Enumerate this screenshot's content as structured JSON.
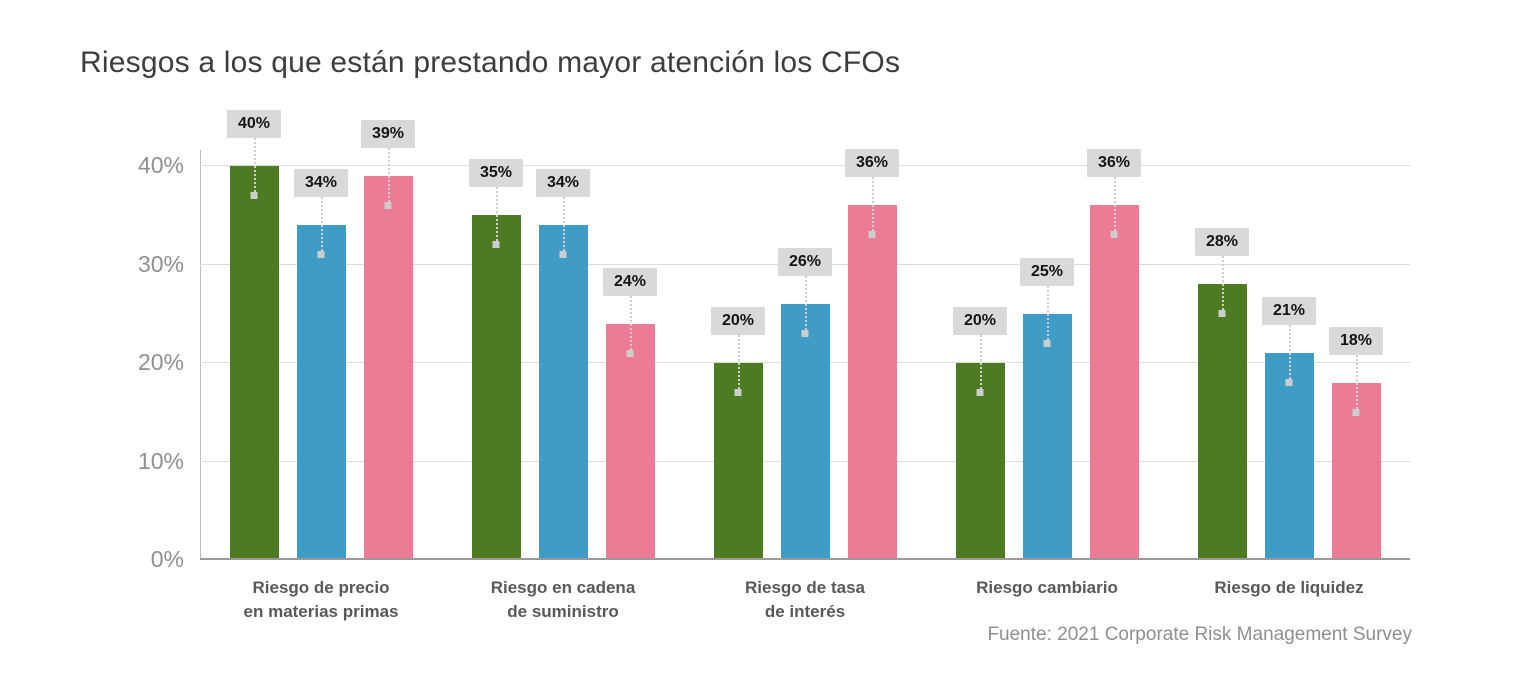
{
  "title": "Riesgos a los que están prestando mayor atención los CFOs",
  "source": "Fuente: 2021 Corporate Risk Management Survey",
  "chart_data": {
    "type": "bar",
    "title": "Riesgos a los que están prestando mayor atención los CFOs",
    "categories": [
      "Riesgo de precio\nen materias primas",
      "Riesgo en cadena\nde suministro",
      "Riesgo de tasa\nde interés",
      "Riesgo cambiario",
      "Riesgo de liquidez"
    ],
    "series": [
      {
        "name": "green",
        "color": "#4D7B21",
        "values": [
          40,
          35,
          20,
          20,
          28
        ]
      },
      {
        "name": "blue",
        "color": "#3F9CC6",
        "values": [
          34,
          34,
          26,
          25,
          21
        ]
      },
      {
        "name": "pink",
        "color": "#EC7C96",
        "values": [
          39,
          24,
          36,
          36,
          18
        ]
      }
    ],
    "value_suffix": "%",
    "yticks": [
      {
        "label": "0%",
        "value": 0
      },
      {
        "label": "10%",
        "value": 10
      },
      {
        "label": "20%",
        "value": 20
      },
      {
        "label": "30%",
        "value": 30
      },
      {
        "label": "40%",
        "value": 40
      }
    ],
    "ylim": [
      0,
      42
    ],
    "grid": true,
    "legend": "none",
    "xlabel": "",
    "ylabel": "",
    "data_label_style": {
      "background": "#D9D9D9",
      "bold": true
    }
  }
}
